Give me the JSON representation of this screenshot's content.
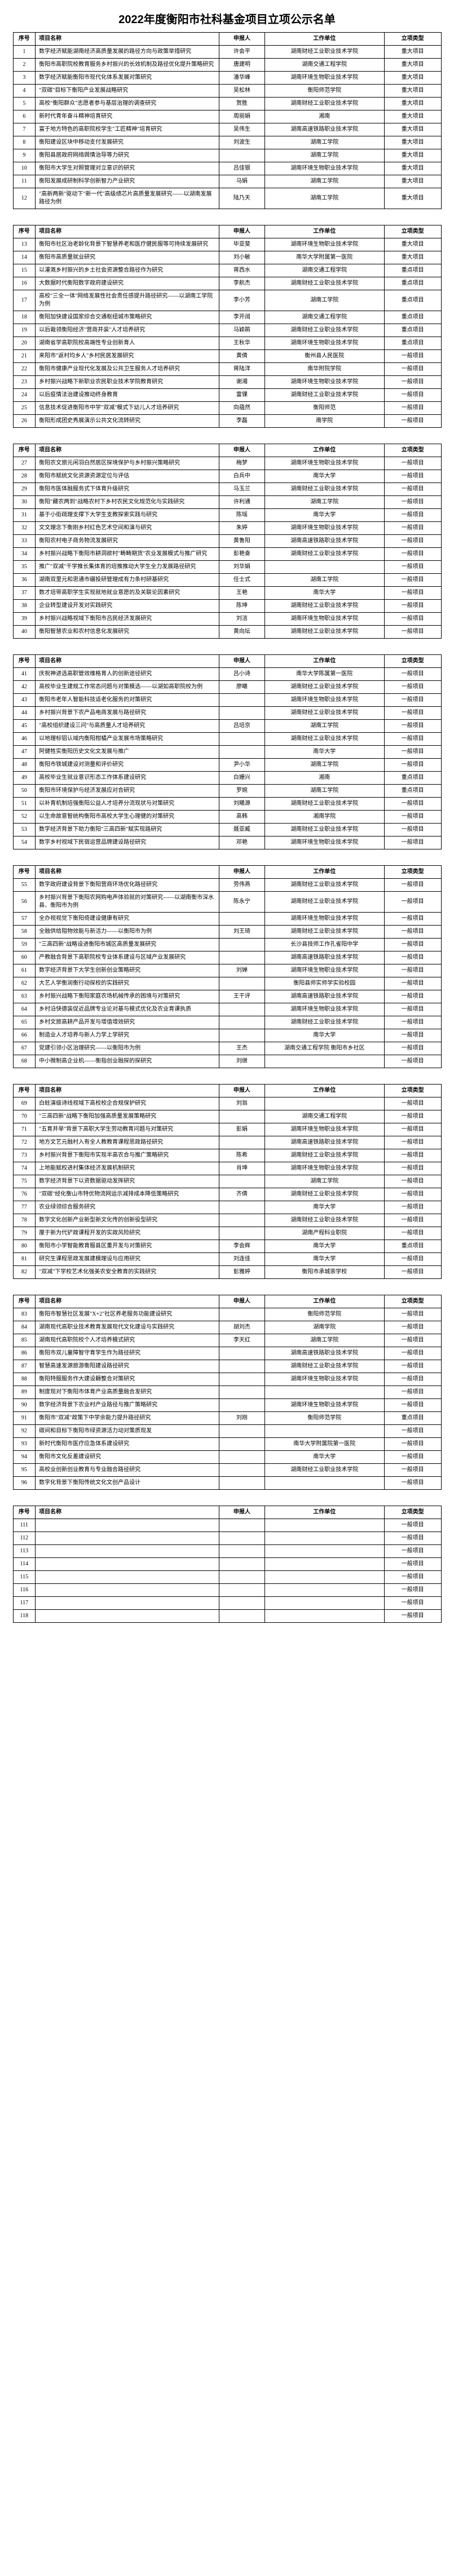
{
  "title": "2022年度衡阳市社科基金项目立项公示名单",
  "columns": {
    "seq": "序号",
    "name": "项目名称",
    "person": "申报人",
    "unit": "工作单位",
    "type": "立项类型"
  },
  "groups": [
    {
      "rows": [
        {
          "seq": "1",
          "name": "数字经济赋能湖南经济高质量发展的路径方向与政策举措研究",
          "person": "许会平",
          "unit": "湖南财经工业职业技术学院",
          "type": "重大项目"
        },
        {
          "seq": "2",
          "name": "衡阳市高职院校教育服务乡村振兴的长效机制及路径优化提升策略研究",
          "person": "唐建明",
          "unit": "湖南交通工程学院",
          "type": "重大项目"
        },
        {
          "seq": "3",
          "name": "数字经济赋能衡阳市现代化体系发展对策研究",
          "person": "潘华峰",
          "unit": "湖南环境生物职业技术学院",
          "type": "重大项目"
        },
        {
          "seq": "4",
          "name": "\"双碳\"目标下衡阳产业发展战略研究",
          "person": "吴松林",
          "unit": "衡阳师范学院",
          "type": "重大项目"
        },
        {
          "seq": "5",
          "name": "高校\"衡阳群众\"志愿者参与基层治理的调查研究",
          "person": "贺胜",
          "unit": "湖南财经工业职业技术学院",
          "type": "重大项目"
        },
        {
          "seq": "6",
          "name": "新时代青年奋斗精神培育研究",
          "person": "周丽娟",
          "unit": "湘南",
          "type": "重大项目"
        },
        {
          "seq": "7",
          "name": "富于地方特色的高职院校学生\"工匠精神\"培育研究",
          "person": "吴伟生",
          "unit": "湖南高速铁路职业技术学院",
          "type": "重大项目"
        },
        {
          "seq": "8",
          "name": "衡阳建设区块中移动支付发展研究",
          "person": "刘波生",
          "unit": "湖南工学院",
          "type": "重大项目"
        },
        {
          "seq": "9",
          "name": "衡阳县居政府网络舆情治导等力研究",
          "person": "",
          "unit": "湖南工学院",
          "type": "重大项目"
        },
        {
          "seq": "10",
          "name": "衡阳市大学生对照管理对立意识的研究",
          "person": "吕佳银",
          "unit": "湖南环境生物职业技术学院",
          "type": "重大项目"
        },
        {
          "seq": "11",
          "name": "衡阳发展成研制科学创新智力产业研究",
          "person": "马娟",
          "unit": "湖南工学院",
          "type": "重大项目"
        },
        {
          "seq": "12",
          "name": "\"高新两新\"驱动下\"新一代\"高级绩芯片高质量发展研究——以湖南发展路径为例",
          "person": "陆乃天",
          "unit": "湖南工学院",
          "type": "重大项目"
        }
      ]
    },
    {
      "rows": [
        {
          "seq": "13",
          "name": "衡阳市社区治老龄化背景下智慧养老和医疗健民服等可持续发展研究",
          "person": "毕亚斐",
          "unit": "湖南环境生物职业技术学院",
          "type": "重大项目"
        },
        {
          "seq": "14",
          "name": "衡阳市高质量就业研究",
          "person": "刘小敏",
          "unit": "南华大学附属第一医院",
          "type": "重大项目"
        },
        {
          "seq": "15",
          "name": "以灌溉乡村振兴的乡土社会资源整合路径作为研究",
          "person": "蒋西水",
          "unit": "湖南交通工程学院",
          "type": "重点项目"
        },
        {
          "seq": "16",
          "name": "大数据时代衡阳数字政府建设研究",
          "person": "李航杰",
          "unit": "湖南财经工业职业技术学院",
          "type": "重点项目"
        },
        {
          "seq": "17",
          "name": "高校\"三全一体\"网络发展性社会责任感提升路径研究——以湖南工学院为例",
          "person": "李小芳",
          "unit": "湖南工学院",
          "type": "重点项目"
        },
        {
          "seq": "18",
          "name": "衡阳加快建设国家综合交通枢纽城市策略研究",
          "person": "李开阔",
          "unit": "湖南交通工程学院",
          "type": "重点项目"
        },
        {
          "seq": "19",
          "name": "以后裁领衡阳经济\"营商并装\"人才培养研究",
          "person": "马颖鹃",
          "unit": "湖南财经工业职业技术学院",
          "type": "重点项目"
        },
        {
          "seq": "20",
          "name": "湖南省学高职院校高端性专业创新育人",
          "person": "王秋华",
          "unit": "湖南环境生物职业技术学院",
          "type": "重点项目"
        },
        {
          "seq": "21",
          "name": "来阳市\"返村均乡人\"乡村民居发展研究",
          "person": "黄倩",
          "unit": "衡州县人民医院",
          "type": "一般项目"
        },
        {
          "seq": "22",
          "name": "衡阳市健康产业现代化发展及公共卫生服务人才培养研究",
          "person": "蒋陆洋",
          "unit": "南华附院学院",
          "type": "一般项目"
        },
        {
          "seq": "23",
          "name": "乡村振兴战略下新职业农民职业技术学院教育研究",
          "person": "谢湘",
          "unit": "湖南环境生物职业技术学院",
          "type": "一般项目"
        },
        {
          "seq": "24",
          "name": "以后疫情法治建设推动终身教育",
          "person": "雷锞",
          "unit": "湖南财经工业职业技术学院",
          "type": "一般项目"
        },
        {
          "seq": "25",
          "name": "信息技术促进衡阳市中学\"双减\"模式下幼儿人才培养研究",
          "person": "向蕴然",
          "unit": "衡阳师范",
          "type": "一般项目"
        },
        {
          "seq": "26",
          "name": "衡阳形成团史秀展演示公共文化流转研究",
          "person": "李磊",
          "unit": "南学院",
          "type": "一般项目"
        }
      ]
    },
    {
      "rows": [
        {
          "seq": "27",
          "name": "衡阳农文旅元闲羽白然居区探境保护与乡村振兴策略研究",
          "person": "梅梦",
          "unit": "湖南环境生物职业技术学院",
          "type": "一般项目"
        },
        {
          "seq": "28",
          "name": "衡阳市赋统文化资源资源定位与评估",
          "person": "白兵中",
          "unit": "南华大学",
          "type": "一般项目"
        },
        {
          "seq": "29",
          "name": "衡阳市医体融服务式下体育升级研究",
          "person": "马玉兰",
          "unit": "湖南财经工业职业技术学院",
          "type": "一般项目"
        },
        {
          "seq": "30",
          "name": "衡阳\"藏农两到\"战略农村下乡村农民文化规范化与实践研究",
          "person": "许利通",
          "unit": "湖南工学院",
          "type": "一般项目"
        },
        {
          "seq": "31",
          "name": "基于小街疏理支撑下大学生支教探索实践与研究",
          "person": "陈瑶",
          "unit": "南华大学",
          "type": "一般项目"
        },
        {
          "seq": "32",
          "name": "文文理念下衡刚乡村红色艺术空间和演与研究",
          "person": "朱婷",
          "unit": "湖南环境生物职业技术学院",
          "type": "一般项目"
        },
        {
          "seq": "33",
          "name": "衡阳农村电子商务物流发展研究",
          "person": "黄鲁阳",
          "unit": "湖南高速铁路职业技术学院",
          "type": "一般项目"
        },
        {
          "seq": "34",
          "name": "乡村振兴战略下衡阳市耕洞欲村\"畴畴期货\"农业发展模式与推广研究",
          "person": "彭艳奋",
          "unit": "湖南财经工业职业技术学院",
          "type": "一般项目"
        },
        {
          "seq": "35",
          "name": "推广\"双减\"干学推长集体育的培推推动大学生全力发展路径研究",
          "person": "刘华娟",
          "unit": "",
          "type": "一般项目"
        },
        {
          "seq": "36",
          "name": "湖南双里元和思通市碾投研管理成有力条村研基研究",
          "person": "任士式",
          "unit": "湖南工学院",
          "type": "一般项目"
        },
        {
          "seq": "37",
          "name": "数才培带高职学生实现就地就业意愿的及关联论因素研究",
          "person": "王艳",
          "unit": "南华大学",
          "type": "一般项目"
        },
        {
          "seq": "38",
          "name": "企业转型建设开发对实践研究",
          "person": "陈坤",
          "unit": "湖南财经工业职业技术学院",
          "type": "一般项目"
        },
        {
          "seq": "39",
          "name": "乡村振兴战略视域下衡阳市吕民经济发展研究",
          "person": "刘洁",
          "unit": "湖南环境生物职业技术学院",
          "type": "一般项目"
        },
        {
          "seq": "40",
          "name": "衡阳智慧农业和农村信息化发展研究",
          "person": "黄向坛",
          "unit": "湖南财经工业职业技术学院",
          "type": "一般项目"
        }
      ]
    },
    {
      "rows": [
        {
          "seq": "41",
          "name": "庆祝神进选高职管效维格育人的创新途径研究",
          "person": "吕小诗",
          "unit": "南华大学陈属第一医院",
          "type": "一般项目"
        },
        {
          "seq": "42",
          "name": "高校毕业生建规工作常态问题与对策模选——以湖如高职院校为例",
          "person": "廖曦",
          "unit": "湖南财经工业职业技术学院",
          "type": "一般项目"
        },
        {
          "seq": "43",
          "name": "衡阳市老年人智能科技适老化服务的对策研究",
          "person": "",
          "unit": "湖南环境生物职业技术学院",
          "type": "一般项目"
        },
        {
          "seq": "44",
          "name": "乡村振兴背景下农产品电商发展与路径研究",
          "person": "",
          "unit": "湖南财经工业职业技术学院",
          "type": "一般项目"
        },
        {
          "seq": "45",
          "name": "\"高校组织建设三问\"与高质量人才培养研究",
          "person": "吕培京",
          "unit": "湖南工学院",
          "type": "一般项目"
        },
        {
          "seq": "46",
          "name": "以地理标铝认域内衡阳柑橘产业发展市场策略研究",
          "person": "",
          "unit": "湖南财经工业职业技术学院",
          "type": "一般项目"
        },
        {
          "seq": "47",
          "name": "阿健牲实衡阳历史文化文发展与推广",
          "person": "",
          "unit": "南华大学",
          "type": "一般项目"
        },
        {
          "seq": "48",
          "name": "衡阳市铁城建设对测量和评价研究",
          "person": "尹小华",
          "unit": "湖南工学院",
          "type": "一般项目"
        },
        {
          "seq": "49",
          "name": "高校毕业生就业意识形态工作体系建设研究",
          "person": "白姗兴",
          "unit": "湘南",
          "type": "重点项目"
        },
        {
          "seq": "50",
          "name": "衡阳市环境保护与经济发展应对合研究",
          "person": "罗婉",
          "unit": "湖南工学院",
          "type": "重点项目"
        },
        {
          "seq": "51",
          "name": "以补育机制培强衡阳公益人才培养分流现状与对策研究",
          "person": "刘曦源",
          "unit": "湖南财经工业职业技术学院",
          "type": "一般项目"
        },
        {
          "seq": "52",
          "name": "以生命故意智统构衡阳市高校大学生心理健的对策研究",
          "person": "高韩",
          "unit": "湘南学院",
          "type": "一般项目"
        },
        {
          "seq": "53",
          "name": "数字经济背景下助力衡阳\"三高四新\"赋实现路研究",
          "person": "聂亚臧",
          "unit": "湖南财经工业职业技术学院",
          "type": "一般项目"
        },
        {
          "seq": "54",
          "name": "数字乡村视域下民宿运营品牌建设路径研究",
          "person": "邓艳",
          "unit": "湖南环境生物职业技术学院",
          "type": "一般项目"
        }
      ]
    },
    {
      "rows": [
        {
          "seq": "55",
          "name": "数字政府建设背景下衡阳营商环场优化路径研究",
          "person": "劳伟燕",
          "unit": "湖南财经工业职业技术学院",
          "type": "一般项目"
        },
        {
          "seq": "56",
          "name": "乡村振兴背景下衡阳农网购电声体验就的对策研究——以湖南衡市深水县、衡阳市为例",
          "person": "陈永宁",
          "unit": "湖南财经工业职业技术学院",
          "type": "一般项目"
        },
        {
          "seq": "57",
          "name": "全办视视觉下衡阳倚建设健康有研究",
          "person": "",
          "unit": "湖南环境生物职业技术学院",
          "type": "一般项目"
        },
        {
          "seq": "58",
          "name": "全融供给阻物效能与新活力——以衡阳市为例",
          "person": "刘王琦",
          "unit": "湖南财经工业职业技术学院",
          "type": "一般项目"
        },
        {
          "seq": "59",
          "name": "\"三高四新\"战略设进衡阳市城区高质量发展研究",
          "person": "",
          "unit": "长沙县技师工作孔雀阳中学",
          "type": "一般项目"
        },
        {
          "seq": "60",
          "name": "产教融合背景下高职院校专业体系建设与区域产业发展研究",
          "person": "",
          "unit": "湖南高速铁路职业技术学院",
          "type": "一般项目"
        },
        {
          "seq": "61",
          "name": "数字经济背景下大学生创新创业策略研究",
          "person": "刘婵",
          "unit": "湖南环境生物职业技术学院",
          "type": "一般项目"
        },
        {
          "seq": "62",
          "name": "大艺人学衡润衡行动探校的实践研究",
          "person": "",
          "unit": "衡阳县师实师学实验校园",
          "type": "一般项目"
        },
        {
          "seq": "63",
          "name": "乡村振兴战略下衡阳家庭农场机械传承的困境与对策研究",
          "person": "王干评",
          "unit": "湖南高速铁路职业技术学院",
          "type": "一般项目"
        },
        {
          "seq": "64",
          "name": "乡村沿快德装促近品牌专业论对基与模式优化及农业育课执质",
          "person": "",
          "unit": "湖南环境生物职业技术学院",
          "type": "一般项目"
        },
        {
          "seq": "65",
          "name": "乡村文旅高耕产品开发与增值增效研究",
          "person": "",
          "unit": "湖南财经工业职业技术学院",
          "type": "一般项目"
        },
        {
          "seq": "66",
          "name": "制造业人才培养与新人力学上学研究",
          "person": "",
          "unit": "南华大学",
          "type": "一般项目"
        },
        {
          "seq": "67",
          "name": "党建引领小区治理研究——以衡阳市为例",
          "person": "王杰",
          "unit": "湖南交通工程学院  衡阳市乡社区",
          "type": "一般项目"
        },
        {
          "seq": "68",
          "name": "中小微制高企业机——衡指创业融探的探研究",
          "person": "刘继",
          "unit": "",
          "type": "一般项目"
        }
      ]
    },
    {
      "rows": [
        {
          "seq": "69",
          "name": "白蛀演级诗线视域下高校校企合规保护研究",
          "person": "刘翁",
          "unit": "",
          "type": "一般项目"
        },
        {
          "seq": "70",
          "name": "\"三高四新\"战略下衡阳加强高质量发展策略研究",
          "person": "",
          "unit": "湖南交通工程学院",
          "type": "一般项目"
        },
        {
          "seq": "71",
          "name": "\"五育并举\"背景下高职大学生劳动教育问题与对策研究",
          "person": "彭娟",
          "unit": "湖南环境生物职业技术学院",
          "type": "一般项目"
        },
        {
          "seq": "72",
          "name": "地方文艺元融村入有全人教教育课程思政路径研究",
          "person": "",
          "unit": "湖南高速铁路职业技术学院",
          "type": "一般项目"
        },
        {
          "seq": "73",
          "name": "乡村振兴背景下衡阳市实现半高农合与推广策略研究",
          "person": "陈希",
          "unit": "湖南财经工业职业技术学院",
          "type": "一般项目"
        },
        {
          "seq": "74",
          "name": "上地能赋权进村集体经济发展机制研究",
          "person": "肖坤",
          "unit": "湖南环境生物职业技术学院",
          "type": "一般项目"
        },
        {
          "seq": "75",
          "name": "数字经济背景下以资数据驱动发挥研究",
          "person": "",
          "unit": "湖南工学院",
          "type": "一般项目"
        },
        {
          "seq": "76",
          "name": "\"双碳\"经化衡山市特优物流网运示减排成本降低策略研究",
          "person": "齐倩",
          "unit": "湖南财经工业职业技术学院",
          "type": "一般项目"
        },
        {
          "seq": "77",
          "name": "农业绿领综合服务研究",
          "person": "",
          "unit": "南华大学",
          "type": "一般项目"
        },
        {
          "seq": "78",
          "name": "数字文化创新产业新型新文化传的创新役型研究",
          "person": "",
          "unit": "湖南财经工业职业技术学院",
          "type": "一般项目"
        },
        {
          "seq": "79",
          "name": "厘于新为代铲政课程开发的实政风险研究",
          "person": "",
          "unit": "湖南产程科业职院",
          "type": "一般项目"
        },
        {
          "seq": "80",
          "name": "衡阳市小学智能教育服县区重开发与对策研究",
          "person": "李会辉",
          "unit": "南华大学",
          "type": "重点项目"
        },
        {
          "seq": "81",
          "name": "研究生课程思政发展建模理设与应用研究",
          "person": "刘连佳",
          "unit": "南华大学",
          "type": "一般项目"
        },
        {
          "seq": "82",
          "name": "\"双减\"下学校艺术化强美农安全教育的实践研究",
          "person": "彭雅婷",
          "unit": "衡阳市承城崇学校",
          "type": "一般项目"
        }
      ]
    },
    {
      "rows": [
        {
          "seq": "83",
          "name": "衡阳市智慧社区发展\"X+2\"社区养老服务功能建设研究",
          "person": "",
          "unit": "衡阳师范学院",
          "type": "一般项目"
        },
        {
          "seq": "84",
          "name": "湖南现代高职业技术教育发展现代文化建设与实践研究",
          "person": "胡刘杰",
          "unit": "湖南学院",
          "type": "一般项目"
        },
        {
          "seq": "85",
          "name": "湖南现代高职院校个人才培养模式研究",
          "person": "李天红",
          "unit": "湖南工学院",
          "type": "一般项目"
        },
        {
          "seq": "86",
          "name": "衡阳市双儿童障智守育学生作为路径研究",
          "person": "",
          "unit": "湖南高速铁路职业技术学院",
          "type": "一般项目"
        },
        {
          "seq": "87",
          "name": "智慧高速发源旅游衡阳建设路径研究",
          "person": "",
          "unit": "湖南财经工业职业技术学院",
          "type": "一般项目"
        },
        {
          "seq": "88",
          "name": "衡阳特服服务作大建设耨整合对策研究",
          "person": "",
          "unit": "湖南环境生物职业技术学院",
          "type": "一般项目"
        },
        {
          "seq": "89",
          "name": "制度现对下衡阳市体育产业高质量融合发研究",
          "person": "",
          "unit": "",
          "type": "一般项目"
        },
        {
          "seq": "90",
          "name": "数字经济背景下农业村产业路径与推广策略研究",
          "person": "",
          "unit": "湖南环境生物职业技术学院",
          "type": "一般项目"
        },
        {
          "seq": "91",
          "name": "衡阳市\"双减\"政策下中学余能力提升路径研究",
          "person": "刘刚",
          "unit": "衡阳师范学院",
          "type": "重点项目"
        },
        {
          "seq": "92",
          "name": "碳间和目标下衡阳市绿资源活力动对策质现发",
          "person": "",
          "unit": "",
          "type": "一般项目"
        },
        {
          "seq": "93",
          "name": "新时代衡阳市医疗应急体系建设研究",
          "person": "",
          "unit": "南华大学附属院第一医院",
          "type": "一般项目"
        },
        {
          "seq": "94",
          "name": "衡阳市文化反差建设研究",
          "person": "",
          "unit": "南华大学",
          "type": "一般项目"
        },
        {
          "seq": "95",
          "name": "高校业创新创业教育与专业融合路径研究",
          "person": "",
          "unit": "湖南财经工业职业技术学院",
          "type": "一般项目"
        },
        {
          "seq": "96",
          "name": "数字化背景下衡阳传统文化文创产品设计",
          "person": "",
          "unit": "",
          "type": "一般项目"
        }
      ]
    },
    {
      "rows": [
        {
          "seq": "111",
          "name": "",
          "person": "",
          "unit": "",
          "type": "一般项目"
        },
        {
          "seq": "112",
          "name": "",
          "person": "",
          "unit": "",
          "type": "一般项目"
        },
        {
          "seq": "113",
          "name": "",
          "person": "",
          "unit": "",
          "type": "一般项目"
        },
        {
          "seq": "114",
          "name": "",
          "person": "",
          "unit": "",
          "type": "一般项目"
        },
        {
          "seq": "115",
          "name": "",
          "person": "",
          "unit": "",
          "type": "一般项目"
        },
        {
          "seq": "116",
          "name": "",
          "person": "",
          "unit": "",
          "type": "一般项目"
        },
        {
          "seq": "117",
          "name": "",
          "person": "",
          "unit": "",
          "type": "一般项目"
        },
        {
          "seq": "118",
          "name": "",
          "person": "",
          "unit": "",
          "type": "一般项目"
        }
      ]
    }
  ]
}
